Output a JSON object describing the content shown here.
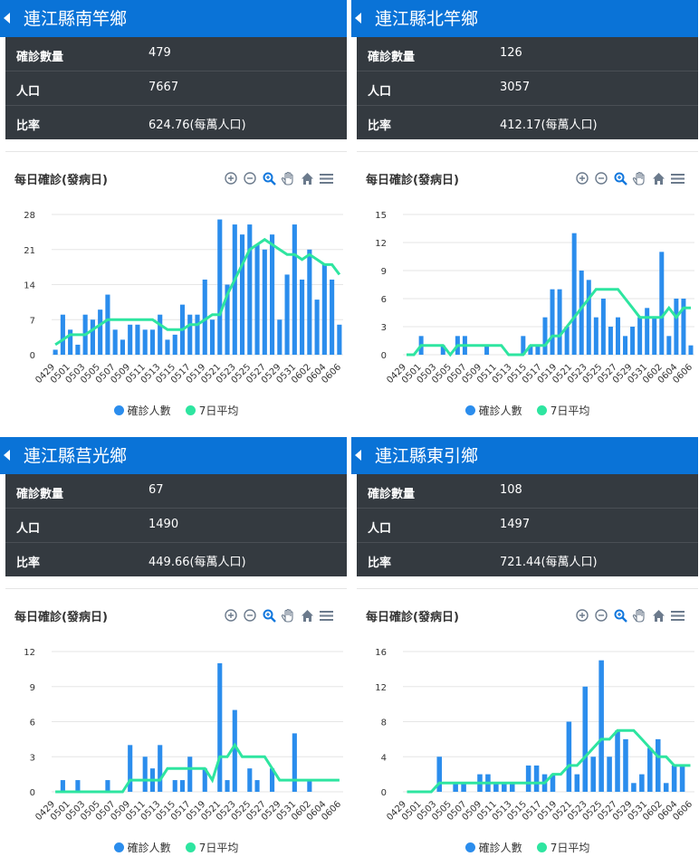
{
  "colors": {
    "header": "#0a73d7",
    "bar": "#2b8ded",
    "line": "#2ee5a0"
  },
  "legend": {
    "bar": "確診人數",
    "line": "7日平均"
  },
  "chart_title": "每日確診(發病日)",
  "panels": [
    {
      "title": "連江縣南竿鄉",
      "stats": [
        {
          "label": "確診數量",
          "value": "479"
        },
        {
          "label": "人口",
          "value": "7667"
        },
        {
          "label": "比率",
          "value": "624.76(每萬人口)"
        }
      ],
      "chart_data": {
        "type": "bar",
        "yticks": [
          0,
          7,
          14,
          21,
          28
        ],
        "ymax": 28,
        "xticks": [
          "0429",
          "0501",
          "0503",
          "0505",
          "0507",
          "0509",
          "0511",
          "0513",
          "0515",
          "0517",
          "0519",
          "0521",
          "0523",
          "0525",
          "0527",
          "0529",
          "0531",
          "0602",
          "0604",
          "0606"
        ],
        "series": [
          {
            "name": "確診人數",
            "values": [
              1,
              8,
              5,
              2,
              8,
              7,
              9,
              12,
              5,
              3,
              6,
              6,
              5,
              5,
              8,
              3,
              4,
              10,
              8,
              8,
              15,
              7,
              27,
              14,
              26,
              24,
              26,
              22,
              21,
              24,
              7,
              16,
              26,
              15,
              21,
              11,
              18,
              15,
              6
            ]
          },
          {
            "name": "7日平均",
            "values": [
              2,
              3,
              4,
              4,
              4,
              5,
              6,
              7,
              7,
              7,
              7,
              7,
              7,
              7,
              6,
              5,
              5,
              5,
              6,
              6,
              7,
              8,
              8,
              12,
              15,
              18,
              21,
              22,
              23,
              22,
              21,
              20,
              20,
              19,
              20,
              19,
              18,
              18,
              16
            ]
          }
        ]
      }
    },
    {
      "title": "連江縣北竿鄉",
      "stats": [
        {
          "label": "確診數量",
          "value": "126"
        },
        {
          "label": "人口",
          "value": "3057"
        },
        {
          "label": "比率",
          "value": "412.17(每萬人口)"
        }
      ],
      "chart_data": {
        "type": "bar",
        "yticks": [
          0,
          3,
          6,
          9,
          12,
          15
        ],
        "ymax": 15,
        "xticks": [
          "0429",
          "0501",
          "0503",
          "0505",
          "0507",
          "0509",
          "0511",
          "0513",
          "0515",
          "0517",
          "0519",
          "0521",
          "0523",
          "0525",
          "0527",
          "0529",
          "0531",
          "0602",
          "0604",
          "0606"
        ],
        "series": [
          {
            "name": "確診人數",
            "values": [
              0,
              0,
              2,
              0,
              0,
              1,
              0,
              2,
              2,
              0,
              0,
              1,
              0,
              0,
              0,
              0,
              2,
              1,
              1,
              4,
              7,
              7,
              3,
              13,
              9,
              8,
              4,
              6,
              3,
              4,
              2,
              3,
              4,
              5,
              4,
              11,
              2,
              6,
              6,
              1
            ]
          },
          {
            "name": "7日平均",
            "values": [
              0,
              0,
              1,
              1,
              1,
              1,
              0,
              1,
              1,
              1,
              1,
              1,
              1,
              1,
              0,
              0,
              0,
              1,
              1,
              1,
              2,
              2,
              3,
              4,
              5,
              6,
              7,
              7,
              7,
              7,
              6,
              5,
              4,
              4,
              4,
              4,
              5,
              4,
              5,
              5
            ]
          }
        ]
      }
    },
    {
      "title": "連江縣莒光鄉",
      "stats": [
        {
          "label": "確診數量",
          "value": "67"
        },
        {
          "label": "人口",
          "value": "1490"
        },
        {
          "label": "比率",
          "value": "449.66(每萬人口)"
        }
      ],
      "chart_data": {
        "type": "bar",
        "yticks": [
          0,
          3,
          6,
          9,
          12
        ],
        "ymax": 12,
        "xticks": [
          "0429",
          "0501",
          "0503",
          "0505",
          "0507",
          "0509",
          "0511",
          "0513",
          "0515",
          "0517",
          "0519",
          "0521",
          "0523",
          "0525",
          "0527",
          "0529",
          "0531",
          "0602",
          "0604",
          "0606"
        ],
        "series": [
          {
            "name": "確診人數",
            "values": [
              0,
              1,
              0,
              1,
              0,
              0,
              0,
              1,
              0,
              0,
              4,
              0,
              3,
              2,
              4,
              0,
              1,
              1,
              3,
              0,
              2,
              0,
              11,
              1,
              7,
              0,
              2,
              1,
              0,
              2,
              0,
              0,
              5,
              0,
              1,
              0,
              0,
              0,
              0
            ]
          },
          {
            "name": "7日平均",
            "values": [
              0,
              0,
              0,
              0,
              0,
              0,
              0,
              0,
              0,
              0,
              1,
              1,
              1,
              1,
              1,
              2,
              2,
              2,
              2,
              2,
              2,
              1,
              3,
              3,
              4,
              3,
              3,
              3,
              3,
              2,
              1,
              1,
              1,
              1,
              1,
              1,
              1,
              1,
              1
            ]
          }
        ]
      }
    },
    {
      "title": "連江縣東引鄉",
      "stats": [
        {
          "label": "確診數量",
          "value": "108"
        },
        {
          "label": "人口",
          "value": "1497"
        },
        {
          "label": "比率",
          "value": "721.44(每萬人口)"
        }
      ],
      "chart_data": {
        "type": "bar",
        "yticks": [
          0,
          4,
          8,
          12,
          16
        ],
        "ymax": 16,
        "xticks": [
          "0429",
          "0501",
          "0503",
          "0505",
          "0507",
          "0509",
          "0511",
          "0513",
          "0515",
          "0517",
          "0519",
          "0521",
          "0523",
          "0525",
          "0527",
          "0529",
          "0531",
          "0602",
          "0604",
          "0606"
        ],
        "series": [
          {
            "name": "確診人數",
            "values": [
              0,
              0,
              0,
              0,
              4,
              0,
              1,
              1,
              0,
              2,
              2,
              1,
              1,
              1,
              0,
              3,
              3,
              2,
              2,
              0,
              8,
              2,
              12,
              4,
              15,
              4,
              7,
              6,
              1,
              2,
              5,
              6,
              1,
              3,
              3,
              0
            ]
          },
          {
            "name": "7日平均",
            "values": [
              0,
              0,
              0,
              0,
              1,
              1,
              1,
              1,
              1,
              1,
              1,
              1,
              1,
              1,
              1,
              1,
              1,
              1,
              2,
              2,
              3,
              3,
              4,
              5,
              6,
              6,
              7,
              7,
              7,
              6,
              5,
              4,
              4,
              3,
              3,
              3
            ]
          }
        ]
      }
    }
  ]
}
